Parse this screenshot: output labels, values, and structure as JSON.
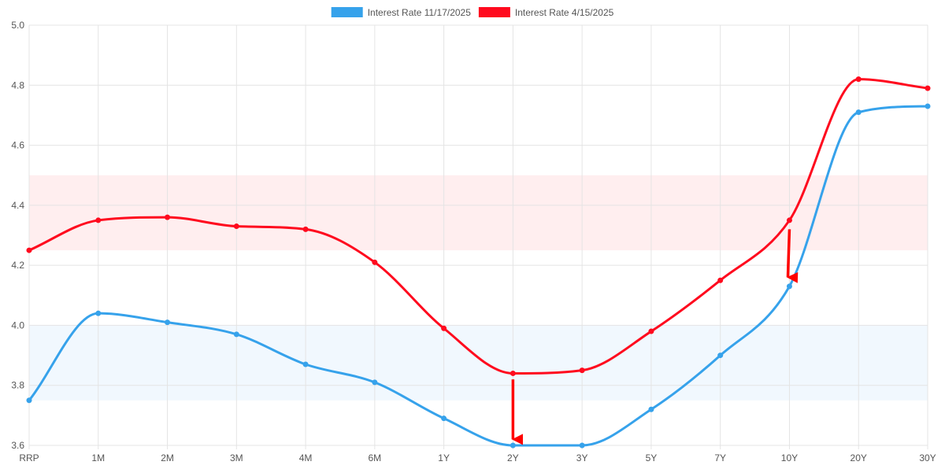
{
  "chart_data": {
    "type": "line",
    "title": "",
    "xlabel": "",
    "ylabel": "",
    "categories": [
      "RRP",
      "1M",
      "2M",
      "3M",
      "4M",
      "6M",
      "1Y",
      "2Y",
      "3Y",
      "5Y",
      "7Y",
      "10Y",
      "20Y",
      "30Y"
    ],
    "ylim": [
      3.6,
      5.0
    ],
    "yticks": [
      "3.6",
      "3.8",
      "4.0",
      "4.2",
      "4.4",
      "4.6",
      "4.8",
      "5.0"
    ],
    "grid": true,
    "legend_position": "top-center",
    "series": [
      {
        "name": "Interest Rate 11/17/2025",
        "color": "#36a2eb",
        "values": [
          3.75,
          4.04,
          4.01,
          3.97,
          3.87,
          3.81,
          3.69,
          3.6,
          3.6,
          3.72,
          3.9,
          4.13,
          4.71,
          4.73
        ]
      },
      {
        "name": "Interest Rate 4/15/2025",
        "color": "#ff0a1e",
        "values": [
          4.25,
          4.35,
          4.36,
          4.33,
          4.32,
          4.21,
          3.99,
          3.84,
          3.85,
          3.98,
          4.15,
          4.35,
          4.82,
          4.79
        ]
      }
    ],
    "bands": [
      {
        "from": 3.75,
        "to": 4.0,
        "color": "#36a2eb"
      },
      {
        "from": 4.25,
        "to": 4.5,
        "color": "#ff0a1e"
      }
    ],
    "annotations": [
      {
        "type": "arrow",
        "category": "2Y",
        "from": 3.82,
        "to": 3.62,
        "color": "#ff0000"
      },
      {
        "type": "arrow",
        "category": "10Y",
        "from": 4.32,
        "to": 4.16,
        "color": "#ff0000"
      }
    ]
  }
}
